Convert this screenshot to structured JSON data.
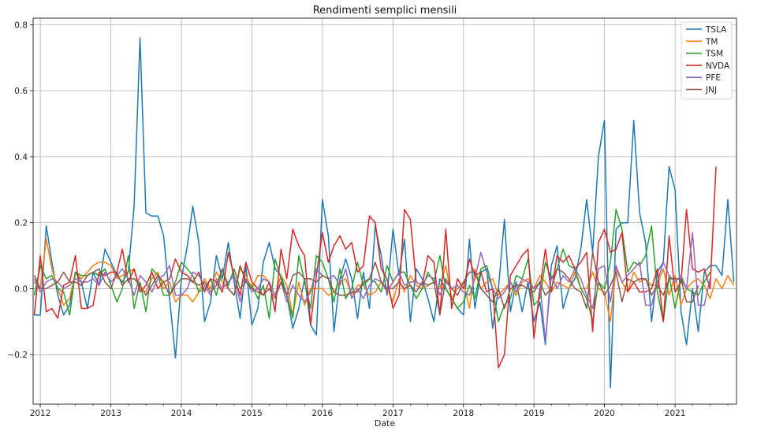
{
  "chart_data": {
    "type": "line",
    "title": "Rendimenti semplici mensili",
    "xlabel": "Date",
    "ylabel": "",
    "x_start": "2011-12",
    "x_end": "2021-11",
    "xlim": [
      "2011-11-25",
      "2021-11-15"
    ],
    "ylim": [
      -0.35,
      0.82
    ],
    "yticks": [
      -0.2,
      0.0,
      0.2,
      0.4,
      0.6,
      0.8
    ],
    "ytick_labels": [
      "−0.2",
      "0.0",
      "0.2",
      "0.4",
      "0.6",
      "0.8"
    ],
    "xticks": [
      "2012-01",
      "2013-01",
      "2014-01",
      "2015-01",
      "2016-01",
      "2017-01",
      "2018-01",
      "2019-01",
      "2020-01",
      "2021-01"
    ],
    "xtick_labels": [
      "2012",
      "2013",
      "2014",
      "2015",
      "2016",
      "2017",
      "2018",
      "2019",
      "2020",
      "2021"
    ],
    "grid": true,
    "legend_position": "top-right",
    "series": [
      {
        "name": "TSLA",
        "color": "#1f77b4",
        "values": [
          -0.08,
          -0.08,
          0.19,
          0.08,
          -0.02,
          -0.08,
          -0.05,
          0.05,
          0.02,
          -0.06,
          0.05,
          0.01,
          0.12,
          0.08,
          0.04,
          0.02,
          0.05,
          0.25,
          0.76,
          0.23,
          0.22,
          0.22,
          0.16,
          -0.03,
          -0.21,
          0.03,
          0.13,
          0.25,
          0.14,
          -0.1,
          -0.04,
          0.1,
          0.03,
          0.14,
          0.02,
          -0.09,
          0.07,
          -0.11,
          -0.06,
          0.08,
          0.14,
          0.06,
          0.04,
          -0.02,
          -0.12,
          -0.06,
          0.03,
          -0.11,
          -0.14,
          0.27,
          0.16,
          -0.13,
          0.03,
          0.09,
          0.03,
          -0.09,
          0.05,
          -0.06,
          0.19,
          0.1,
          -0.02,
          0.18,
          0.04,
          0.15,
          -0.1,
          0.06,
          0.03,
          -0.03,
          -0.1,
          0.03,
          0.0,
          -0.03,
          -0.06,
          -0.08,
          0.15,
          -0.06,
          0.05,
          0.06,
          -0.12,
          0.0,
          0.21,
          -0.07,
          0.02,
          -0.07,
          0.02,
          -0.1,
          -0.04,
          -0.17,
          0.07,
          0.13,
          -0.06,
          0.0,
          0.03,
          0.12,
          0.27,
          0.11,
          0.4,
          0.51,
          -0.3,
          0.18,
          0.2,
          0.2,
          0.51,
          0.23,
          0.14,
          -0.1,
          0.05,
          0.08,
          0.37,
          0.3,
          -0.07,
          -0.17,
          0.0,
          -0.13,
          0.05,
          0.07,
          0.07,
          0.04,
          0.27,
          0.02
        ]
      },
      {
        "name": "TM",
        "color": "#ff7f0e",
        "values": [
          0.02,
          0.0,
          0.15,
          0.06,
          0.0,
          -0.05,
          -0.03,
          0.05,
          0.03,
          0.05,
          0.07,
          0.08,
          0.08,
          0.07,
          0.03,
          0.04,
          0.05,
          0.06,
          0.0,
          -0.01,
          0.03,
          0.05,
          0.0,
          0.02,
          -0.04,
          -0.02,
          -0.02,
          -0.04,
          -0.01,
          0.03,
          0.0,
          0.05,
          0.02,
          0.0,
          -0.02,
          0.06,
          0.04,
          0.0,
          0.04,
          0.04,
          0.02,
          -0.02,
          0.04,
          0.01,
          -0.08,
          0.02,
          -0.05,
          0.0,
          0.0,
          0.0,
          -0.02,
          -0.01,
          0.02,
          0.03,
          -0.02,
          0.01,
          0.01,
          -0.02,
          -0.01,
          0.02,
          0.0,
          -0.04,
          0.03,
          -0.01,
          0.04,
          0.01,
          0.0,
          0.01,
          0.02,
          0.0,
          0.07,
          -0.03,
          0.0,
          0.02,
          -0.06,
          0.06,
          0.0,
          0.02,
          0.03,
          -0.02,
          0.0,
          0.02,
          -0.02,
          0.02,
          0.03,
          0.0,
          0.04,
          0.02,
          -0.01,
          0.02,
          0.01,
          0.0,
          0.05,
          0.0,
          0.0,
          0.05,
          0.0,
          -0.01,
          -0.1,
          0.06,
          0.02,
          -0.01,
          0.05,
          0.02,
          0.03,
          0.01,
          0.01,
          0.06,
          -0.02,
          0.04,
          -0.05,
          0.0,
          0.02,
          0.03,
          0.01,
          -0.03,
          0.03,
          0.0,
          0.04,
          0.01
        ]
      },
      {
        "name": "TSM",
        "color": "#2ca02c",
        "values": [
          -0.02,
          0.07,
          0.03,
          0.04,
          0.0,
          -0.01,
          -0.08,
          0.05,
          0.04,
          0.04,
          0.05,
          0.04,
          0.06,
          0.01,
          -0.04,
          0.0,
          0.1,
          -0.06,
          0.02,
          -0.07,
          0.06,
          0.04,
          -0.02,
          -0.02,
          0.02,
          0.08,
          0.06,
          0.04,
          -0.01,
          0.0,
          0.03,
          -0.02,
          0.06,
          0.01,
          0.06,
          0.0,
          0.02,
          0.01,
          -0.03,
          0.01,
          -0.09,
          0.09,
          0.03,
          -0.02,
          -0.09,
          0.1,
          0.02,
          -0.06,
          0.1,
          0.08,
          0.03,
          -0.04,
          0.06,
          -0.03,
          0.0,
          0.08,
          0.01,
          0.03,
          0.02,
          -0.01,
          0.07,
          0.02,
          0.05,
          0.05,
          0.01,
          -0.03,
          0.0,
          0.05,
          0.02,
          0.1,
          0.0,
          -0.03,
          -0.06,
          -0.04,
          0.01,
          -0.03,
          0.06,
          0.07,
          0.0,
          -0.1,
          -0.05,
          -0.03,
          0.04,
          0.03,
          0.09,
          -0.05,
          -0.03,
          0.08,
          0.03,
          0.06,
          0.12,
          0.07,
          0.06,
          0.0,
          -0.03,
          -0.1,
          0.02,
          0.0,
          0.08,
          0.24,
          0.18,
          0.05,
          0.08,
          0.07,
          0.1,
          0.19,
          -0.01,
          -0.1,
          0.04,
          -0.06,
          0.03,
          0.0,
          -0.01,
          -0.02,
          0.02,
          0.05
        ]
      },
      {
        "name": "NVDA",
        "color": "#d62728",
        "values": [
          -0.08,
          0.1,
          -0.07,
          -0.06,
          -0.09,
          0.01,
          0.02,
          0.1,
          -0.06,
          -0.06,
          -0.05,
          0.05,
          0.04,
          0.05,
          0.05,
          0.12,
          0.02,
          0.06,
          -0.01,
          0.01,
          0.05,
          0.0,
          0.02,
          0.03,
          0.09,
          0.05,
          0.04,
          0.02,
          0.05,
          -0.01,
          0.03,
          0.02,
          -0.01,
          0.11,
          0.04,
          -0.02,
          0.08,
          0.02,
          0.0,
          -0.02,
          0.02,
          -0.07,
          0.12,
          0.03,
          0.18,
          0.13,
          0.1,
          -0.11,
          0.04,
          0.17,
          0.08,
          0.13,
          0.16,
          0.12,
          0.14,
          0.05,
          0.07,
          0.22,
          0.2,
          0.06,
          0.03,
          -0.06,
          -0.02,
          0.24,
          0.21,
          0.02,
          0.01,
          0.1,
          0.08,
          -0.08,
          0.18,
          -0.06,
          0.03,
          0.0,
          0.09,
          0.04,
          0.05,
          -0.01,
          0.0,
          -0.24,
          -0.2,
          0.04,
          0.07,
          0.1,
          0.12,
          -0.15,
          0.0,
          0.12,
          -0.01,
          0.1,
          0.08,
          0.1,
          0.06,
          0.08,
          0.11,
          -0.13,
          0.14,
          0.18,
          0.11,
          0.12,
          0.17,
          -0.01,
          0.02,
          -0.01,
          -0.01,
          0.0,
          0.06,
          -0.1,
          0.16,
          -0.01,
          0.02,
          0.24,
          0.06,
          0.05,
          0.06,
          0.0,
          0.37
        ]
      },
      {
        "name": "PFE",
        "color": "#9467bd",
        "values": [
          0.03,
          -0.01,
          0.02,
          0.03,
          0.02,
          0.0,
          0.01,
          0.03,
          0.02,
          0.02,
          0.03,
          0.01,
          0.05,
          0.02,
          0.04,
          0.06,
          0.03,
          -0.02,
          0.04,
          0.02,
          -0.01,
          0.03,
          0.04,
          0.07,
          -0.02,
          -0.02,
          0.0,
          0.05,
          0.04,
          0.01,
          -0.02,
          0.03,
          0.0,
          0.02,
          0.04,
          -0.04,
          0.03,
          -0.01,
          0.0,
          0.03,
          0.02,
          -0.02,
          0.02,
          -0.04,
          0.01,
          -0.02,
          -0.04,
          -0.01,
          0.06,
          0.04,
          0.03,
          0.04,
          0.01,
          0.06,
          -0.03,
          0.0,
          -0.03,
          0.01,
          0.03,
          0.02,
          -0.01,
          0.02,
          0.05,
          0.01,
          0.02,
          0.02,
          0.01,
          0.04,
          0.03,
          -0.02,
          0.02,
          0.0,
          0.01,
          -0.01,
          -0.02,
          0.03,
          0.11,
          0.05,
          0.0,
          -0.03,
          -0.01,
          0.02,
          -0.01,
          0.03,
          0.02,
          0.0,
          0.02,
          -0.16,
          0.04,
          0.0,
          0.04,
          0.02,
          0.06,
          0.03,
          -0.02,
          -0.06,
          0.06,
          0.07,
          -0.04,
          0.07,
          0.02,
          0.04,
          0.06,
          0.08,
          -0.05,
          -0.05,
          0.02,
          0.08,
          0.04,
          0.02,
          0.04,
          0.0,
          0.17,
          -0.05,
          -0.05,
          0.03
        ]
      },
      {
        "name": "JNJ",
        "color": "#8c564b",
        "values": [
          0.04,
          0.0,
          0.0,
          0.01,
          0.02,
          0.05,
          0.02,
          0.02,
          0.01,
          0.04,
          0.05,
          0.06,
          0.02,
          0.0,
          0.05,
          0.01,
          0.03,
          0.03,
          0.01,
          -0.02,
          0.01,
          0.04,
          0.02,
          -0.02,
          0.01,
          0.03,
          0.03,
          0.02,
          0.01,
          0.02,
          -0.01,
          0.01,
          0.06,
          0.0,
          -0.02,
          0.07,
          0.02,
          0.0,
          -0.01,
          -0.02,
          0.0,
          -0.03,
          0.02,
          -0.02,
          0.04,
          0.05,
          0.03,
          0.03,
          0.02,
          0.04,
          0.03,
          -0.01,
          -0.02,
          -0.02,
          -0.01,
          -0.01,
          0.02,
          0.03,
          0.08,
          0.02,
          0.0,
          0.0,
          0.02,
          0.0,
          0.01,
          -0.01,
          0.02,
          0.01,
          0.02,
          -0.08,
          0.03,
          0.0,
          -0.02,
          0.02,
          0.05,
          0.05,
          0.0,
          -0.02,
          -0.04,
          0.0,
          -0.06,
          0.0,
          0.01,
          0.01,
          0.0,
          -0.01,
          0.02,
          -0.02,
          0.0,
          0.06,
          0.05,
          0.03,
          0.0,
          -0.01,
          -0.06,
          0.11,
          0.02,
          -0.02,
          0.01,
          0.05,
          -0.04,
          0.03,
          0.02,
          0.03,
          0.03,
          -0.02,
          0.01,
          -0.02,
          0.03,
          0.03,
          0.03,
          -0.04,
          -0.04,
          0.01
        ]
      }
    ]
  }
}
